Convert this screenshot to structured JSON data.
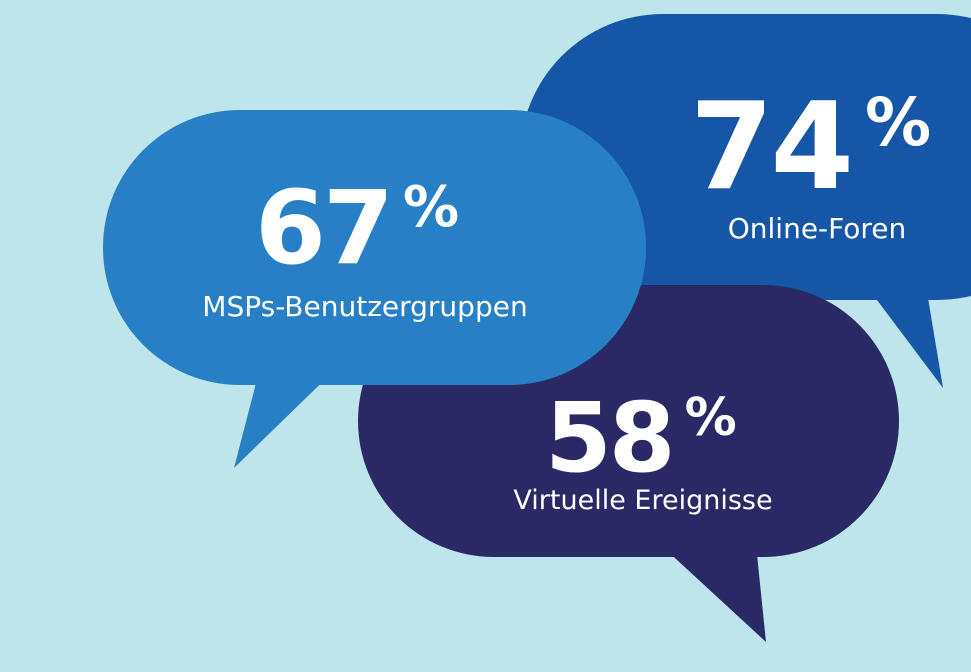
{
  "background_color": "#bfe5ec",
  "bubbles": [
    {
      "id": "online-foren",
      "color": "#1557a6",
      "value": "74",
      "percent_sign": "%",
      "label": "Online-Foren"
    },
    {
      "id": "virtuelle-ereignisse",
      "color": "#2b2965",
      "value": "58",
      "percent_sign": "%",
      "label": "Virtuelle Ereignisse"
    },
    {
      "id": "msps-benutzergruppen",
      "color": "#2780c6",
      "value": "67",
      "percent_sign": "%",
      "label": "MSPs-Benutzergruppen"
    }
  ]
}
